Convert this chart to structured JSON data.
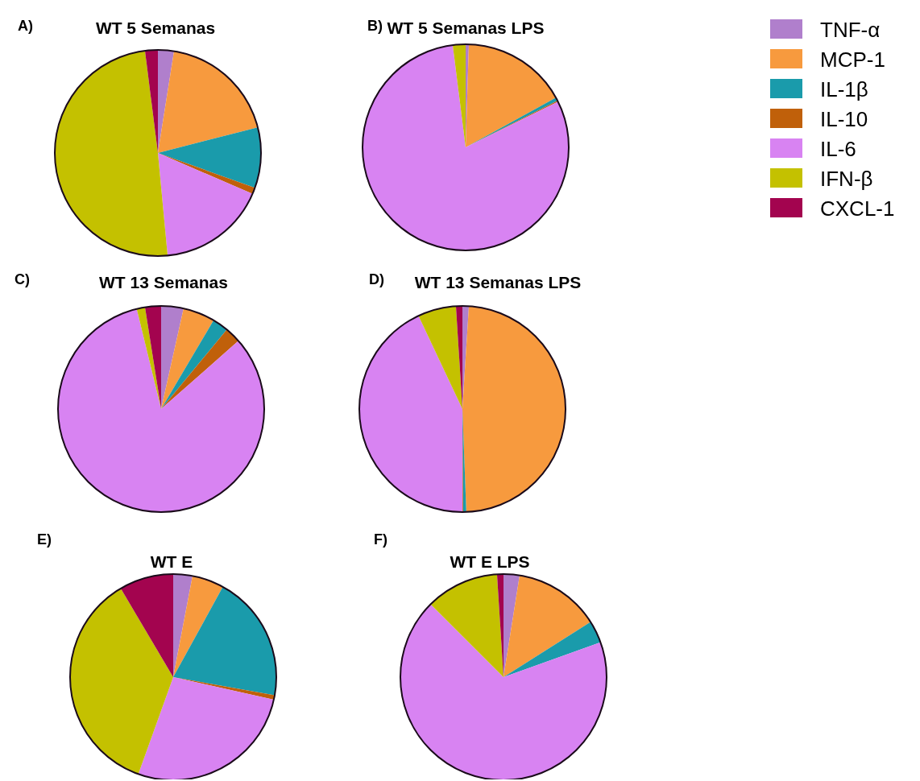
{
  "chart_data": [
    {
      "type": "pie",
      "title": "WT 5 Semanas",
      "annotations": [
        "A)"
      ],
      "categories": [
        "TNF-α",
        "MCP-1",
        "IL-1β",
        "IL-10",
        "IL-6",
        "IFN-β",
        "CXCL-1"
      ],
      "values": [
        2.5,
        18.5,
        9.5,
        1,
        17,
        49.5,
        2
      ],
      "colors": [
        "#b07fcc",
        "#f79a3e",
        "#1a9bab",
        "#c0600a",
        "#d883f2",
        "#c4c100",
        "#a3044f"
      ],
      "legend": "right"
    },
    {
      "type": "pie",
      "title": "WT 5 Semanas LPS",
      "annotations": [
        "B)"
      ],
      "categories": [
        null,
        null,
        null,
        null,
        null,
        null,
        null
      ],
      "values": [
        0.5,
        16.5,
        0.5,
        0.2,
        80.3,
        2,
        0
      ],
      "colors": [
        "#b07fcc",
        "#f79a3e",
        "#1a9bab",
        "#c0600a",
        "#d883f2",
        "#c4c100",
        "#a3044f"
      ]
    },
    {
      "type": "pie",
      "title": "WT 13 Semanas",
      "annotations": [
        "C)"
      ],
      "categories": [
        null,
        null,
        null,
        null,
        null,
        null,
        null
      ],
      "values": [
        3.5,
        5,
        2.5,
        2.5,
        82.7,
        1.3,
        2.5
      ],
      "colors": [
        "#b07fcc",
        "#f79a3e",
        "#1a9bab",
        "#c0600a",
        "#d883f2",
        "#c4c100",
        "#a3044f"
      ]
    },
    {
      "type": "pie",
      "title": "WT 13 Semanas LPS",
      "annotations": [
        "D)"
      ],
      "categories": [
        null,
        null,
        null,
        null,
        null,
        null,
        null
      ],
      "values": [
        1,
        48.4,
        0.5,
        0.1,
        43,
        6,
        1
      ],
      "colors": [
        "#b07fcc",
        "#f79a3e",
        "#1a9bab",
        "#c0600a",
        "#d883f2",
        "#c4c100",
        "#a3044f"
      ]
    },
    {
      "type": "pie",
      "title": "WT E",
      "annotations": [
        "E)"
      ],
      "categories": [
        null,
        null,
        null,
        null,
        null,
        null,
        null
      ],
      "values": [
        3,
        5,
        19.8,
        0.7,
        27,
        36,
        8.5
      ],
      "colors": [
        "#b07fcc",
        "#f79a3e",
        "#1a9bab",
        "#c0600a",
        "#d883f2",
        "#c4c100",
        "#a3044f"
      ]
    },
    {
      "type": "pie",
      "title": "WT E LPS",
      "annotations": [
        "F)"
      ],
      "categories": [
        null,
        null,
        null,
        null,
        null,
        null,
        null
      ],
      "values": [
        2.5,
        13.5,
        3.5,
        0,
        68,
        11.5,
        1
      ],
      "colors": [
        "#b07fcc",
        "#f79a3e",
        "#1a9bab",
        "#c0600a",
        "#d883f2",
        "#c4c100",
        "#a3044f"
      ]
    }
  ]
}
